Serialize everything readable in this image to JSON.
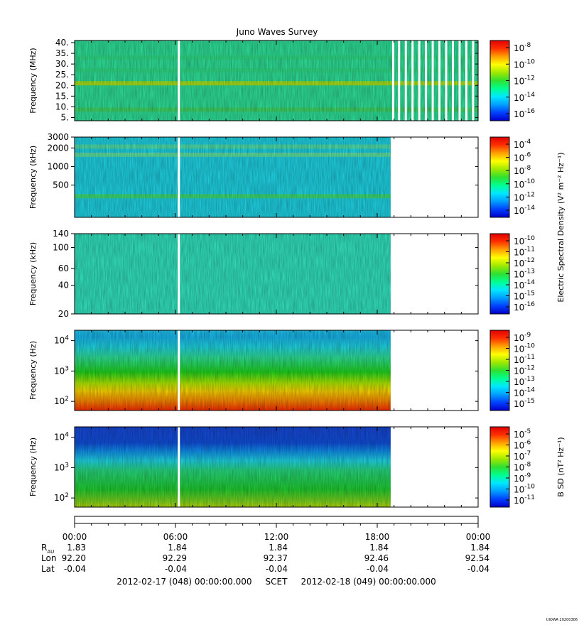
{
  "title": "Juno Waves Survey",
  "chart_data": [
    {
      "type": "heatmap",
      "ylabel": "Frequency (MHz)",
      "yscale": "linear",
      "ylim": [
        3.5,
        41
      ],
      "yticks": [
        {
          "v": 5,
          "label": "5."
        },
        {
          "v": 10,
          "label": "10."
        },
        {
          "v": 15,
          "label": "15."
        },
        {
          "v": 20,
          "label": "20."
        },
        {
          "v": 25,
          "label": "25."
        },
        {
          "v": 30,
          "label": "30."
        },
        {
          "v": 35,
          "label": "35."
        },
        {
          "v": 40,
          "label": "40."
        }
      ],
      "data_end_hours": 24,
      "gaps_hours": [
        6.2,
        18.95,
        19.3,
        19.7,
        20.1,
        20.5,
        20.9,
        21.3,
        21.7,
        22.1,
        22.5,
        22.9,
        23.3,
        23.7
      ],
      "bands": [
        {
          "value": 21,
          "color": "#a8e61e"
        },
        {
          "value": 8.7,
          "color": "#3fd96a"
        },
        {
          "value": 33,
          "color": "#2fe08a"
        },
        {
          "value": 27,
          "color": "#2fe08a"
        }
      ],
      "base_color": "#2fe39a",
      "colorbar": {
        "label": "",
        "ticks": [
          {
            "base": "10",
            "exp": "-8"
          },
          {
            "base": "10",
            "exp": "-10"
          },
          {
            "base": "10",
            "exp": "-12"
          },
          {
            "base": "10",
            "exp": "-14"
          },
          {
            "base": "10",
            "exp": "-16"
          }
        ]
      }
    },
    {
      "type": "heatmap",
      "ylabel": "Frequency (kHz)",
      "yscale": "log",
      "ylim": [
        150,
        3000
      ],
      "yticks": [
        {
          "v": 500,
          "label": "500"
        },
        {
          "v": 1000,
          "label": "1000"
        },
        {
          "v": 2000,
          "label": "2000"
        },
        {
          "v": 3000,
          "label": "3000"
        }
      ],
      "data_end_hours": 18.8,
      "gaps_hours": [
        6.2
      ],
      "bands": [
        {
          "value": 330,
          "color": "#3ee07a"
        },
        {
          "value": 1550,
          "color": "#5ee6a8"
        },
        {
          "value": 2100,
          "color": "#4fe2b0"
        }
      ],
      "base_color": "#1fd6e8",
      "colorbar": {
        "label": "Electric Spectral Density (V² m⁻² Hz⁻¹)",
        "ticks": [
          {
            "base": "10",
            "exp": "-4"
          },
          {
            "base": "10",
            "exp": "-6"
          },
          {
            "base": "10",
            "exp": "-8"
          },
          {
            "base": "10",
            "exp": "-10"
          },
          {
            "base": "10",
            "exp": "-12"
          },
          {
            "base": "10",
            "exp": "-14"
          }
        ]
      }
    },
    {
      "type": "heatmap",
      "ylabel": "Frequency (kHz)",
      "yscale": "log",
      "ylim": [
        20,
        140
      ],
      "yticks": [
        {
          "v": 20,
          "label": "20"
        },
        {
          "v": 40,
          "label": "40"
        },
        {
          "v": 60,
          "label": "60"
        },
        {
          "v": 100,
          "label": "100"
        },
        {
          "v": 140,
          "label": "140"
        }
      ],
      "data_end_hours": 18.8,
      "gaps_hours": [
        6.2
      ],
      "bands": [],
      "base_color": "#33e6c2",
      "colorbar": {
        "label": "",
        "ticks": [
          {
            "base": "10",
            "exp": "-10"
          },
          {
            "base": "10",
            "exp": "-11"
          },
          {
            "base": "10",
            "exp": "-12"
          },
          {
            "base": "10",
            "exp": "-13"
          },
          {
            "base": "10",
            "exp": "-14"
          },
          {
            "base": "10",
            "exp": "-15"
          },
          {
            "base": "10",
            "exp": "-16"
          }
        ]
      }
    },
    {
      "type": "heatmap",
      "ylabel": "Frequency (Hz)",
      "yscale": "log",
      "ylim": [
        50,
        22000
      ],
      "yticks": [
        {
          "v": 100,
          "base": "10",
          "exp": "2"
        },
        {
          "v": 1000,
          "base": "10",
          "exp": "3"
        },
        {
          "v": 10000,
          "base": "10",
          "exp": "4"
        }
      ],
      "data_end_hours": 18.8,
      "gaps_hours": [
        6.2
      ],
      "gradient": [
        {
          "at": 0,
          "color": "#ff2a00"
        },
        {
          "at": 0.12,
          "color": "#ff8c00"
        },
        {
          "at": 0.24,
          "color": "#ffd800"
        },
        {
          "at": 0.34,
          "color": "#b4f000"
        },
        {
          "at": 0.48,
          "color": "#20d820"
        },
        {
          "at": 0.66,
          "color": "#2fe39a"
        },
        {
          "at": 0.8,
          "color": "#1fd6e8"
        },
        {
          "at": 0.92,
          "color": "#18b8f0"
        },
        {
          "at": 1,
          "color": "#20c8f0"
        }
      ],
      "colorbar": {
        "label": "",
        "ticks": [
          {
            "base": "10",
            "exp": "-9"
          },
          {
            "base": "10",
            "exp": "-10"
          },
          {
            "base": "10",
            "exp": "-11"
          },
          {
            "base": "10",
            "exp": "-12"
          },
          {
            "base": "10",
            "exp": "-13"
          },
          {
            "base": "10",
            "exp": "-14"
          },
          {
            "base": "10",
            "exp": "-15"
          }
        ]
      }
    },
    {
      "type": "heatmap",
      "ylabel": "Frequency (Hz)",
      "yscale": "log",
      "ylim": [
        50,
        22000
      ],
      "yticks": [
        {
          "v": 100,
          "base": "10",
          "exp": "2"
        },
        {
          "v": 1000,
          "base": "10",
          "exp": "3"
        },
        {
          "v": 10000,
          "base": "10",
          "exp": "4"
        }
      ],
      "data_end_hours": 18.8,
      "gaps_hours": [
        6.2
      ],
      "gradient": [
        {
          "at": 0,
          "color": "#b8e010"
        },
        {
          "at": 0.08,
          "color": "#7ad820"
        },
        {
          "at": 0.22,
          "color": "#20d030"
        },
        {
          "at": 0.45,
          "color": "#28dc80"
        },
        {
          "at": 0.58,
          "color": "#1fd6e8"
        },
        {
          "at": 0.7,
          "color": "#1090f0"
        },
        {
          "at": 0.8,
          "color": "#1050e0"
        },
        {
          "at": 1,
          "color": "#1848d8"
        }
      ],
      "colorbar": {
        "label": "B SD (nT² Hz⁻¹)",
        "ticks": [
          {
            "base": "10",
            "exp": "-5"
          },
          {
            "base": "10",
            "exp": "-6"
          },
          {
            "base": "10",
            "exp": "-7"
          },
          {
            "base": "10",
            "exp": "-8"
          },
          {
            "base": "10",
            "exp": "-9"
          },
          {
            "base": "10",
            "exp": "-10"
          },
          {
            "base": "10",
            "exp": "-11"
          }
        ]
      }
    }
  ],
  "colorbar_colors": [
    "#0000c8",
    "#0040ff",
    "#00a0ff",
    "#00e8ff",
    "#00ff90",
    "#30e030",
    "#a0e800",
    "#ffff00",
    "#ffa000",
    "#ff3000",
    "#e00000"
  ],
  "xaxis": {
    "ticks_hours": [
      0,
      6,
      12,
      18,
      24
    ],
    "labels": [
      "00:00",
      "06:00",
      "12:00",
      "18:00",
      "00:00"
    ]
  },
  "ephemeris": {
    "row_labels": [
      {
        "main": "R",
        "sub": "AU"
      },
      {
        "main": "Lon",
        "sub": ""
      },
      {
        "main": "Lat",
        "sub": ""
      }
    ],
    "rows": [
      [
        "1.83",
        "1.84",
        "1.84",
        "1.84",
        "1.84"
      ],
      [
        "92.20",
        "92.29",
        "92.37",
        "92.46",
        "92.54"
      ],
      [
        "-0.04",
        "-0.04",
        "-0.04",
        "-0.04",
        "-0.04"
      ]
    ]
  },
  "footer": "2012-02-17 (048) 00:00:00.000     SCET     2012-02-18 (049) 00:00:00.000",
  "credit": "UIOWA 20200306"
}
